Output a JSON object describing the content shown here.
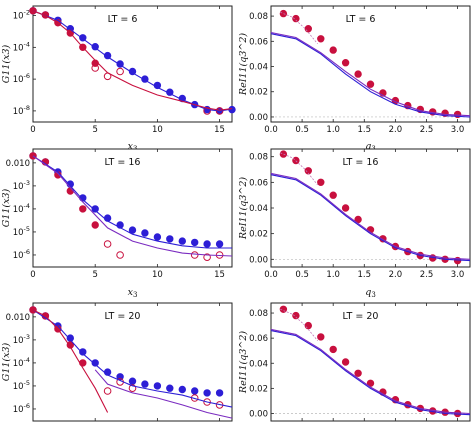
{
  "colors": {
    "blue": "#2d1ed6",
    "red": "#c8103e",
    "purple": "#7a2bc0",
    "peach": "#f0a08a",
    "mauve": "#c277b8"
  },
  "chart_data": [
    {
      "type": "scatter",
      "title": "LT = 6",
      "xlabel": "x3",
      "ylabel": "G11(x3)",
      "yscale": "log",
      "xlim": [
        0,
        16
      ],
      "ylim": [
        2e-09,
        0.04
      ],
      "xticks": [
        "0",
        "5",
        "10",
        "15"
      ],
      "yticks": [
        "10^-2",
        "10^-4",
        "10^-6",
        "10^-8"
      ],
      "series": [
        {
          "kind": "filled-blue",
          "x": [
            0,
            1,
            2,
            3,
            4,
            5,
            6,
            7,
            8,
            9,
            10,
            11,
            12,
            13,
            14,
            15,
            16
          ],
          "y": [
            0.02,
            0.011,
            0.005,
            0.0015,
            0.0004,
            0.00011,
            3e-05,
            9e-06,
            3e-06,
            1e-06,
            4e-07,
            1.5e-07,
            6e-08,
            2.5e-08,
            1.2e-08,
            1e-08,
            1.2e-08
          ]
        },
        {
          "kind": "filled-red",
          "x": [
            0,
            1,
            2,
            3,
            4,
            5
          ],
          "y": [
            0.02,
            0.011,
            0.0035,
            0.0008,
            0.0001,
            1e-05
          ]
        },
        {
          "kind": "open-red",
          "x": [
            5,
            6,
            7,
            14,
            15
          ],
          "y": [
            5e-06,
            1.5e-06,
            3e-06,
            1e-08,
            1e-08
          ]
        },
        {
          "kind": "line-blue",
          "x": [
            0,
            2,
            4,
            6,
            8,
            10,
            12,
            14,
            15,
            16
          ],
          "y": [
            0.02,
            0.005,
            0.00035,
            2.5e-05,
            2.5e-06,
            3e-07,
            5e-08,
            1.2e-08,
            1e-08,
            1.3e-08
          ]
        },
        {
          "kind": "line-red",
          "x": [
            0,
            1,
            2,
            3,
            4,
            5,
            6,
            8,
            10,
            12,
            14,
            15,
            16
          ],
          "y": [
            0.02,
            0.01,
            0.0035,
            0.0008,
            0.0001,
            1.5e-05,
            2.5e-06,
            4e-07,
            1e-07,
            4e-08,
            1.5e-08,
            1.1e-08,
            1.4e-08
          ]
        }
      ]
    },
    {
      "type": "scatter",
      "title": "LT = 6",
      "xlabel": "q3",
      "ylabel": "ReI11(q3^2)",
      "xlim": [
        0,
        3.2
      ],
      "ylim": [
        -0.004,
        0.088
      ],
      "xticks": [
        "0.0",
        "0.5",
        "1.0",
        "1.5",
        "2.0",
        "2.5",
        "3.0"
      ],
      "yticks": [
        "0.00",
        "0.02",
        "0.04",
        "0.06",
        "0.08"
      ],
      "series": [
        {
          "kind": "filled-red",
          "x": [
            0.2,
            0.4,
            0.6,
            0.8,
            1.0,
            1.2,
            1.4,
            1.6,
            1.8,
            2.0,
            2.2,
            2.4,
            2.6,
            2.8,
            3.0
          ],
          "y": [
            0.082,
            0.078,
            0.07,
            0.062,
            0.053,
            0.043,
            0.034,
            0.026,
            0.019,
            0.013,
            0.009,
            0.006,
            0.004,
            0.003,
            0.002
          ]
        },
        {
          "kind": "line-blue",
          "x": [
            0,
            0.4,
            0.8,
            1.2,
            1.6,
            2.0,
            2.4,
            2.8,
            3.2
          ],
          "y": [
            0.066,
            0.062,
            0.05,
            0.034,
            0.02,
            0.01,
            0.004,
            0.001,
            0
          ]
        },
        {
          "kind": "line-purple",
          "x": [
            0,
            0.4,
            0.8,
            1.2,
            1.6,
            2.0,
            2.4,
            2.8,
            3.2
          ],
          "y": [
            0.067,
            0.063,
            0.051,
            0.036,
            0.022,
            0.012,
            0.005,
            0.002,
            0.001
          ]
        }
      ]
    },
    {
      "type": "scatter",
      "title": "LT = 16",
      "xlabel": "x3",
      "ylabel": "G11(x3)",
      "yscale": "log",
      "xlim": [
        0,
        16
      ],
      "ylim": [
        3e-07,
        0.04
      ],
      "xticks": [
        "0",
        "5",
        "10",
        "15"
      ],
      "yticks": [
        "0.010",
        "10^-3",
        "10^-4",
        "10^-5",
        "10^-6"
      ],
      "series": [
        {
          "kind": "filled-blue",
          "x": [
            0,
            1,
            2,
            3,
            4,
            5,
            6,
            7,
            8,
            9,
            10,
            11,
            12,
            13,
            14,
            15
          ],
          "y": [
            0.02,
            0.011,
            0.004,
            0.0012,
            0.0003,
            0.0001,
            4e-05,
            2e-05,
            1.2e-05,
            9e-06,
            6e-06,
            5e-06,
            4e-06,
            3.5e-06,
            3e-06,
            3e-06
          ]
        },
        {
          "kind": "filled-red",
          "x": [
            0,
            1,
            2,
            3,
            4,
            5
          ],
          "y": [
            0.02,
            0.011,
            0.003,
            0.0006,
            0.0001,
            2e-05
          ]
        },
        {
          "kind": "open-red",
          "x": [
            6,
            7,
            13,
            14,
            15
          ],
          "y": [
            3e-06,
            1e-06,
            1e-06,
            8e-07,
            1e-06
          ]
        },
        {
          "kind": "line-blue",
          "x": [
            0,
            2,
            4,
            6,
            8,
            10,
            12,
            14,
            16
          ],
          "y": [
            0.02,
            0.004,
            0.00025,
            3e-05,
            8e-06,
            4e-06,
            2.5e-06,
            2e-06,
            2e-06
          ]
        },
        {
          "kind": "line-purple",
          "x": [
            0,
            2,
            4,
            6,
            8,
            10,
            12,
            14,
            16
          ],
          "y": [
            0.02,
            0.0035,
            0.0002,
            1.5e-05,
            4e-06,
            2e-06,
            1.2e-06,
            1e-06,
            9e-07
          ]
        }
      ]
    },
    {
      "type": "scatter",
      "title": "LT = 16",
      "xlabel": "q3",
      "ylabel": "ReI11(q3^2)",
      "xlim": [
        0,
        3.2
      ],
      "ylim": [
        -0.006,
        0.086
      ],
      "xticks": [
        "0.0",
        "0.5",
        "1.0",
        "1.5",
        "2.0",
        "2.5",
        "3.0"
      ],
      "yticks": [
        "0.00",
        "0.02",
        "0.04",
        "0.06",
        "0.08"
      ],
      "series": [
        {
          "kind": "filled-red",
          "x": [
            0.2,
            0.4,
            0.6,
            0.8,
            1.0,
            1.2,
            1.4,
            1.6,
            1.8,
            2.0,
            2.2,
            2.4,
            2.6,
            2.8,
            3.0
          ],
          "y": [
            0.082,
            0.077,
            0.069,
            0.06,
            0.05,
            0.04,
            0.031,
            0.023,
            0.016,
            0.01,
            0.006,
            0.003,
            0.001,
            0,
            -0.001
          ]
        },
        {
          "kind": "line-blue",
          "x": [
            0,
            0.4,
            0.8,
            1.2,
            1.6,
            2.0,
            2.4,
            2.8,
            3.2
          ],
          "y": [
            0.066,
            0.062,
            0.05,
            0.034,
            0.02,
            0.009,
            0.003,
            0,
            -0.001
          ]
        },
        {
          "kind": "line-purple",
          "x": [
            0,
            0.4,
            0.8,
            1.2,
            1.6,
            2.0,
            2.4,
            2.8,
            3.2
          ],
          "y": [
            0.067,
            0.063,
            0.051,
            0.035,
            0.021,
            0.01,
            0.004,
            0.001,
            0
          ]
        }
      ]
    },
    {
      "type": "scatter",
      "title": "LT = 20",
      "xlabel": "x3",
      "ylabel": "G11(x3)",
      "yscale": "log",
      "xlim": [
        0,
        16
      ],
      "ylim": [
        3e-07,
        0.04
      ],
      "xticks": [],
      "yticks": [
        "0.010",
        "10^-3",
        "10^-4",
        "10^-5",
        "10^-6"
      ],
      "series": [
        {
          "kind": "filled-blue",
          "x": [
            0,
            1,
            2,
            3,
            4,
            5,
            6,
            7,
            8,
            9,
            10,
            11,
            12,
            13,
            14,
            15
          ],
          "y": [
            0.02,
            0.011,
            0.004,
            0.0012,
            0.0003,
            0.0001,
            4e-05,
            2.5e-05,
            1.6e-05,
            1.2e-05,
            1e-05,
            8e-06,
            7e-06,
            6e-06,
            5e-06,
            5e-06
          ]
        },
        {
          "kind": "filled-red",
          "x": [
            0,
            1,
            2,
            3,
            4
          ],
          "y": [
            0.02,
            0.011,
            0.003,
            0.0006,
            0.0001
          ]
        },
        {
          "kind": "open-red",
          "x": [
            6,
            7,
            8,
            13,
            14,
            15
          ],
          "y": [
            6e-06,
            1.5e-05,
            8e-06,
            3e-06,
            2e-06,
            1.5e-06
          ]
        },
        {
          "kind": "line-blue",
          "x": [
            0,
            2,
            4,
            6,
            8,
            10,
            12,
            14,
            16
          ],
          "y": [
            0.02,
            0.004,
            0.00025,
            3e-05,
            1e-05,
            6e-06,
            4e-06,
            2e-06,
            1.2e-06
          ]
        },
        {
          "kind": "line-red",
          "x": [
            0,
            1,
            2,
            3,
            4,
            5,
            6
          ],
          "y": [
            0.02,
            0.011,
            0.003,
            0.0005,
            6e-05,
            8e-06,
            7e-07
          ]
        },
        {
          "kind": "line-purple",
          "x": [
            5,
            6,
            8,
            10,
            12,
            14,
            16
          ],
          "y": [
            5e-05,
            1.2e-05,
            5e-06,
            3e-06,
            1.5e-06,
            7e-07,
            4e-07
          ]
        }
      ]
    },
    {
      "type": "scatter",
      "title": "LT = 20",
      "xlabel": "",
      "ylabel": "ReI11(q3^2)",
      "xlim": [
        0,
        3.2
      ],
      "ylim": [
        -0.006,
        0.088
      ],
      "xticks": [],
      "yticks": [
        "0.00",
        "0.02",
        "0.04",
        "0.06",
        "0.08"
      ],
      "series": [
        {
          "kind": "filled-red",
          "x": [
            0.2,
            0.4,
            0.6,
            0.8,
            1.0,
            1.2,
            1.4,
            1.6,
            1.8,
            2.0,
            2.2,
            2.4,
            2.6,
            2.8,
            3.0
          ],
          "y": [
            0.083,
            0.078,
            0.07,
            0.061,
            0.051,
            0.041,
            0.032,
            0.024,
            0.017,
            0.011,
            0.007,
            0.004,
            0.002,
            0.001,
            0
          ]
        },
        {
          "kind": "line-blue",
          "x": [
            0,
            0.4,
            0.8,
            1.2,
            1.6,
            2.0,
            2.4,
            2.8,
            3.2
          ],
          "y": [
            0.066,
            0.062,
            0.05,
            0.034,
            0.02,
            0.009,
            0.003,
            0,
            -0.001
          ]
        },
        {
          "kind": "line-purple",
          "x": [
            0,
            0.4,
            0.8,
            1.2,
            1.6,
            2.0,
            2.4,
            2.8,
            3.2
          ],
          "y": [
            0.067,
            0.063,
            0.051,
            0.035,
            0.021,
            0.01,
            0.004,
            0.001,
            0
          ]
        }
      ]
    }
  ]
}
